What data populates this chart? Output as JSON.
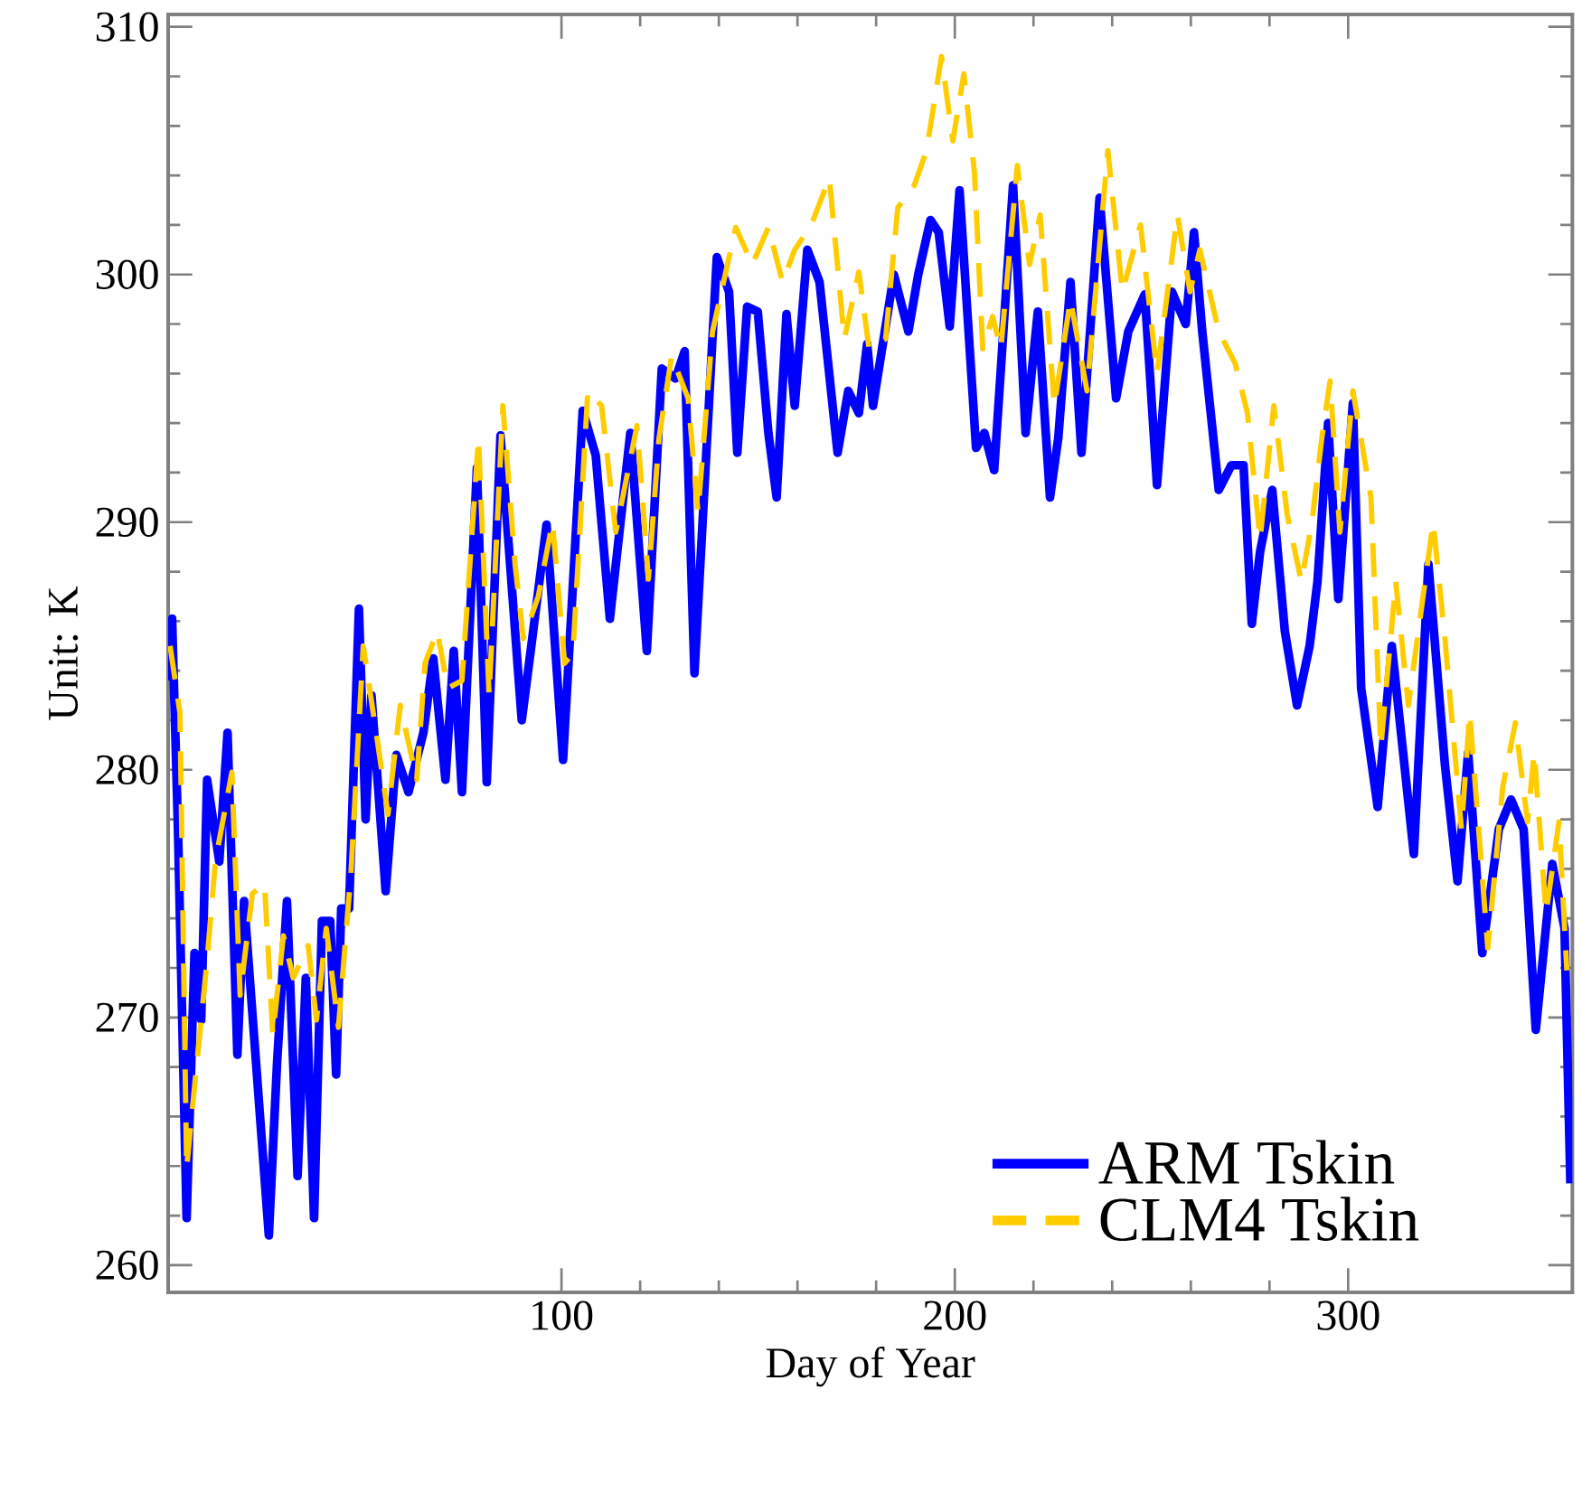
{
  "chart_data": {
    "type": "line",
    "xlabel": "Day of Year",
    "ylabel": "Unit: K",
    "xlim": [
      0,
      357
    ],
    "ylim": [
      258.9,
      310.5
    ],
    "xticks": [
      100,
      200,
      300
    ],
    "yticks": [
      260,
      270,
      280,
      290,
      300,
      310
    ],
    "grid": false,
    "legend": "bottom right",
    "marker": "none",
    "series": [
      {
        "name": "ARM Tskin",
        "color": "#0000ff",
        "line_style": "solid",
        "x": [
          0,
          1,
          2.5,
          4.7,
          6.7,
          8.4,
          9.9,
          13,
          15.1,
          17.6,
          19.3,
          25.6,
          27.7,
          30.2,
          32.9,
          35,
          37.1,
          39.1,
          41.2,
          42.7,
          44,
          46,
          48.5,
          50.2,
          51.7,
          55.3,
          58,
          61.1,
          64.9,
          67.4,
          70.5,
          72.6,
          74.7,
          78.5,
          81,
          84.5,
          89.9,
          92.4,
          96.2,
          100.4,
          105.4,
          108.7,
          112.3,
          117.5,
          121.7,
          125.5,
          129,
          131.3,
          133.8,
          139.5,
          142.6,
          144.7,
          147.2,
          149.9,
          152.6,
          154.7,
          157.2,
          159.3,
          162.5,
          165.6,
          170.2,
          172.9,
          175.6,
          177.7,
          179.2,
          184.5,
          188.2,
          190.7,
          193.8,
          195.9,
          198.7,
          201.2,
          205.4,
          207.5,
          210,
          214.8,
          218,
          221.1,
          224.2,
          226.3,
          229.4,
          232.2,
          236.8,
          241,
          244.1,
          248.3,
          251.4,
          255.2,
          258.7,
          260.8,
          262.9,
          267.1,
          270.3,
          273.4,
          275.5,
          277.6,
          280.7,
          283.9,
          287,
          290.2,
          292.2,
          294.9,
          297.5,
          301.2,
          303.3,
          307.5,
          311.1,
          316.7,
          320.4,
          324.6,
          327.8,
          330.5,
          334.1,
          338.3,
          341.4,
          344.6,
          347.7,
          351.9,
          355,
          356.5
        ],
        "values": [
          283.6,
          286.1,
          277.6,
          261.9,
          272.6,
          269.9,
          279.6,
          276.3,
          281.5,
          268.5,
          274.7,
          261.2,
          268.2,
          274.7,
          263.6,
          271.6,
          261.9,
          273.9,
          273.9,
          267.7,
          274.4,
          274.4,
          286.5,
          278,
          283,
          275.1,
          280.6,
          279.1,
          281.5,
          284.5,
          279.6,
          284.8,
          279.1,
          292.2,
          279.5,
          293.5,
          282,
          285.1,
          289.9,
          280.4,
          294.5,
          292.7,
          286.1,
          293.6,
          284.8,
          296.2,
          295.8,
          296.9,
          283.9,
          300.7,
          299.3,
          292.8,
          298.7,
          298.5,
          293.6,
          291,
          298.4,
          294.7,
          301,
          299.7,
          292.8,
          295.3,
          294.4,
          297.2,
          294.7,
          300,
          297.7,
          300,
          302.2,
          301.7,
          297.9,
          303.4,
          293,
          293.6,
          292.1,
          303.6,
          293.6,
          298.5,
          291,
          293.4,
          299.7,
          292.8,
          303.1,
          295,
          297.7,
          299.2,
          291.5,
          299.3,
          298,
          301.7,
          297.7,
          291.3,
          292.3,
          292.3,
          285.9,
          288.8,
          291.3,
          285.6,
          282.6,
          285,
          287.6,
          294,
          286.9,
          294.8,
          283.3,
          278.5,
          285,
          276.6,
          288.3,
          280.2,
          275.5,
          280.7,
          272.6,
          277.6,
          278.8,
          277.6,
          269.5,
          276.2,
          273.6,
          263.3
        ]
      },
      {
        "name": "CLM4 Tskin",
        "color": "#ffcc00",
        "line_style": "dashed",
        "x": [
          0.5,
          3,
          4.7,
          6.7,
          9.9,
          12,
          16.2,
          18.3,
          21.4,
          24.5,
          26.6,
          29.3,
          31.8,
          35.6,
          37.7,
          40.2,
          43.3,
          46.5,
          49.6,
          52.8,
          55.9,
          59,
          63.2,
          65.3,
          68.4,
          71.1,
          74.7,
          78.9,
          81.6,
          85.1,
          88.2,
          90.3,
          94.1,
          97.7,
          100.8,
          102.9,
          106.7,
          110.2,
          113.8,
          119.2,
          122.1,
          124.8,
          128,
          132.2,
          134.7,
          138.4,
          144.3,
          148.5,
          152.6,
          156.2,
          159.3,
          163.5,
          168.1,
          171.9,
          175.6,
          178.2,
          182.4,
          185.5,
          189.7,
          192.8,
          196.6,
          199.5,
          202.3,
          205,
          207.1,
          209.6,
          211.7,
          215.9,
          219,
          221.7,
          225.3,
          229.4,
          233.6,
          238.9,
          242.6,
          247.2,
          251.4,
          256.6,
          259.8,
          262.3,
          267.1,
          271.3,
          274.4,
          277.6,
          281.1,
          284.5,
          288.1,
          290.8,
          293.3,
          295.4,
          297.9,
          301.2,
          305.8,
          308.3,
          312.1,
          315.3,
          321.6,
          324.6,
          328.8,
          330.9,
          335.5,
          339.3,
          342.5,
          345.6,
          347.3,
          350.3,
          353.6,
          355.6
        ],
        "values": [
          285,
          282.3,
          263.9,
          267.2,
          272.3,
          276.3,
          279.9,
          270.9,
          275,
          275.4,
          269.3,
          273.3,
          271.6,
          272.9,
          269.9,
          273.6,
          269.6,
          275.9,
          285,
          281.6,
          278.2,
          282.6,
          279.6,
          284.3,
          285.6,
          283.3,
          283.6,
          293.4,
          283,
          294.7,
          288.3,
          285.3,
          287,
          290,
          284.3,
          284.7,
          295.3,
          294.7,
          289.6,
          293.9,
          287.7,
          293.4,
          296.7,
          295,
          290.4,
          297.7,
          301.9,
          300.4,
          301.9,
          299.7,
          301,
          302,
          303.9,
          297.4,
          300.1,
          297,
          297.4,
          302.7,
          303.6,
          305,
          308.8,
          305.4,
          308.1,
          304.1,
          297,
          298.3,
          297,
          304.4,
          300.4,
          302.4,
          294.7,
          299,
          295.3,
          305,
          299.3,
          302,
          296,
          302.4,
          299.3,
          301,
          297.7,
          296.4,
          294.4,
          289.3,
          294.7,
          290.3,
          287.6,
          290,
          293.4,
          295.7,
          289.6,
          295.3,
          291,
          280.9,
          287.6,
          282.6,
          290,
          285.3,
          277.6,
          282.3,
          272.8,
          279.3,
          281.9,
          277.9,
          280.7,
          274.2,
          277.9,
          271.9
        ]
      }
    ]
  }
}
